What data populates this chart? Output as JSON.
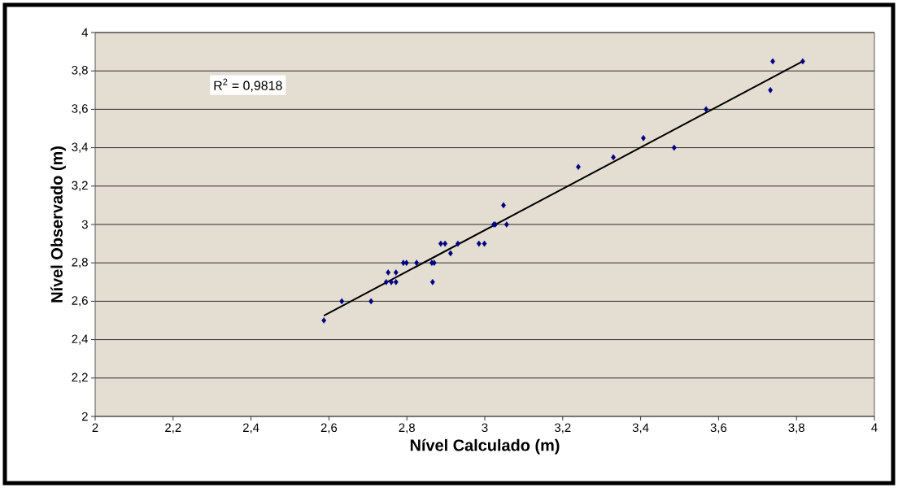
{
  "chart_data": {
    "type": "scatter",
    "xlabel": "Nível Calculado (m)",
    "ylabel": "Nível Observado (m)",
    "annotations": [
      "R$^{2}$ = 0,9818"
    ],
    "series": [
      {
        "color": "#000080",
        "marker": "diamond",
        "x": [
          2.587,
          2.633,
          2.708,
          2.747,
          2.752,
          2.76,
          2.772,
          2.772,
          2.791,
          2.799,
          2.825,
          2.864,
          2.87,
          2.866,
          2.887,
          2.898,
          2.912,
          2.931,
          2.985,
          2.999,
          3.023,
          3.027,
          3.048,
          3.056,
          3.24,
          3.33,
          3.407,
          3.486,
          3.568,
          3.733,
          3.739,
          3.816
        ],
        "values": [
          2.5,
          2.6,
          2.6,
          2.7,
          2.75,
          2.7,
          2.7,
          2.75,
          2.8,
          2.8,
          2.8,
          2.8,
          2.8,
          2.7,
          2.9,
          2.9,
          2.85,
          2.9,
          2.9,
          2.9,
          3.0,
          3.0,
          3.1,
          3.0,
          3.3,
          3.35,
          3.45,
          3.4,
          3.6,
          3.7,
          3.85,
          3.85
        ]
      },
      {
        "type": "line",
        "color": "#000000",
        "marker": "none",
        "x": [
          2.587,
          3.816
        ],
        "values": [
          2.525,
          3.85
        ]
      }
    ],
    "xlim": [
      2,
      4
    ],
    "ylim": [
      2,
      4
    ],
    "xticks": [
      2,
      {
        "value": 2.2,
        "label": "2,2"
      },
      {
        "value": 2.4,
        "label": "2,4"
      },
      {
        "value": 2.6,
        "label": "2,6"
      },
      {
        "value": 2.8,
        "label": "2,8"
      },
      3,
      {
        "value": 3.2,
        "label": "3,2"
      },
      {
        "value": 3.4,
        "label": "3,4"
      },
      {
        "value": 3.6,
        "label": "3,6"
      },
      {
        "value": 3.8,
        "label": "3,8"
      },
      4
    ],
    "yticks": [
      2,
      {
        "value": 2.2,
        "label": "2,2"
      },
      {
        "value": 2.4,
        "label": "2,4"
      },
      {
        "value": 2.6,
        "label": "2,6"
      },
      {
        "value": 2.8,
        "label": "2,8"
      },
      3,
      {
        "value": 3.2,
        "label": "3,2"
      },
      {
        "value": 3.4,
        "label": "3,4"
      },
      {
        "value": 3.6,
        "label": "3,6"
      },
      {
        "value": 3.8,
        "label": "3,8"
      },
      4
    ],
    "grid": "y"
  }
}
